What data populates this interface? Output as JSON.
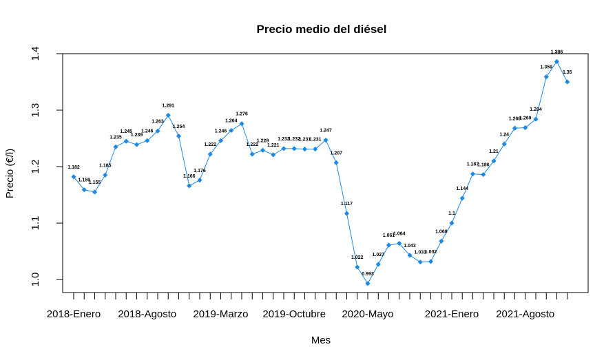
{
  "chart_data": {
    "type": "line",
    "title": "Precio medio del diésel",
    "xlabel": "Mes",
    "ylabel": "Precio (€/l)",
    "ylim": [
      0.977,
      1.4
    ],
    "y_ticks": [
      "1.0",
      "1.1",
      "1.2",
      "1.3",
      "1.4"
    ],
    "x_tick_labels": [
      {
        "index": 0,
        "label": "2018-Enero"
      },
      {
        "index": 7,
        "label": "2018-Agosto"
      },
      {
        "index": 14,
        "label": "2019-Marzo"
      },
      {
        "index": 21,
        "label": "2019-Octubre"
      },
      {
        "index": 28,
        "label": "2020-Mayo"
      },
      {
        "index": 36,
        "label": "2021-Enero"
      },
      {
        "index": 43,
        "label": "2021-Agosto"
      }
    ],
    "grid": false,
    "marker_color": "#1E88E5",
    "line_color": "#1E88E5",
    "series": [
      {
        "values": [
          1.182,
          1.159,
          1.155,
          1.185,
          1.235,
          1.245,
          1.239,
          1.246,
          1.263,
          1.291,
          1.254,
          1.166,
          1.176,
          1.222,
          1.246,
          1.264,
          1.276,
          1.222,
          1.229,
          1.221,
          1.232,
          1.232,
          1.231,
          1.231,
          1.247,
          1.207,
          1.117,
          1.022,
          0.993,
          1.027,
          1.061,
          1.064,
          1.043,
          1.031,
          1.032,
          1.068,
          1.1,
          1.144,
          1.187,
          1.186,
          1.21,
          1.24,
          1.268,
          1.269,
          1.284,
          1.359,
          1.386,
          1.35
        ],
        "labels": [
          "1.182",
          "1.159",
          "1.155",
          "1.185",
          "1.235",
          "1.245",
          "1.239",
          "1.246",
          "1.263",
          "1.291",
          "1.254",
          "1.166",
          "1.176",
          "1.222",
          "1.246",
          "1.264",
          "1.276",
          "1.222",
          "1.229",
          "1.221",
          "1.232",
          "1.232",
          "1.231",
          "1.231",
          "1.247",
          "1.207",
          "1.117",
          "1.022",
          "0.993",
          "1.027",
          "1.061",
          "1.064",
          "1.043",
          "1.031",
          "1.032",
          "1.068",
          "1.1",
          "1.144",
          "1.187",
          "1.186",
          "1.21",
          "1.24",
          "1.268",
          "1.269",
          "1.284",
          "1.359",
          "1.386",
          "1.35"
        ]
      }
    ]
  }
}
